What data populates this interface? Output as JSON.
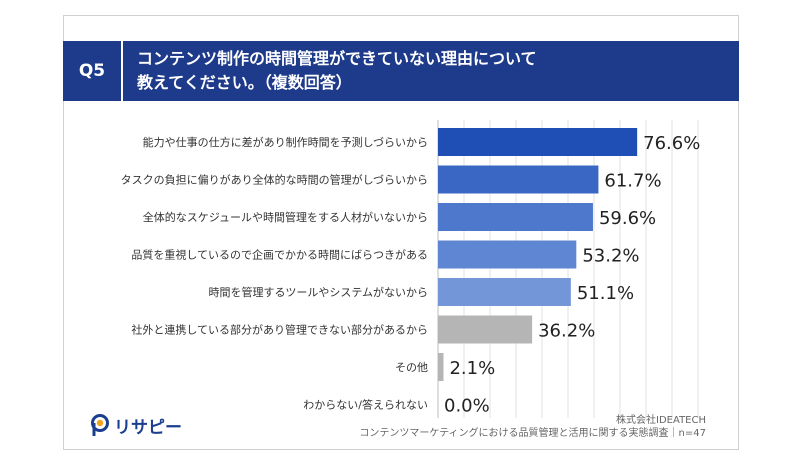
{
  "question": {
    "badge": "Q5",
    "line1": "コンテンツ制作の時間管理ができていない理由について",
    "line2": "教えてください。（複数回答）"
  },
  "chart_data": {
    "type": "bar",
    "orientation": "horizontal",
    "categories": [
      "能力や仕事の仕方に差があり制作時間を予測しづらいから",
      "タスクの負担に偏りがあり全体的な時間の管理がしづらいから",
      "全体的なスケジュールや時間管理をする人材がいないから",
      "品質を重視しているので企画でかかる時間にばらつきがある",
      "時間を管理するツールやシステムがないから",
      "社外と連携している部分があり管理できない部分があるから",
      "その他",
      "わからない/答えられない"
    ],
    "values": [
      76.6,
      61.7,
      59.6,
      53.2,
      51.1,
      36.2,
      2.1,
      0.0
    ],
    "value_labels": [
      "76.6%",
      "61.7%",
      "59.6%",
      "53.2%",
      "51.1%",
      "36.2%",
      "2.1%",
      "0.0%"
    ],
    "colors": [
      "#1f4fb5",
      "#3a66c4",
      "#4e78cc",
      "#5f86d2",
      "#7396d9",
      "#b5b5b5",
      "#b5b5b5",
      "#b5b5b5"
    ],
    "xlim": [
      0,
      100
    ],
    "grid": true
  },
  "logo": {
    "text": "リサピー"
  },
  "source": {
    "line1": "株式会社IDEATECH",
    "line2": "コンテンツマーケティングにおける品質管理と活用に関する実態調査｜n=47"
  }
}
